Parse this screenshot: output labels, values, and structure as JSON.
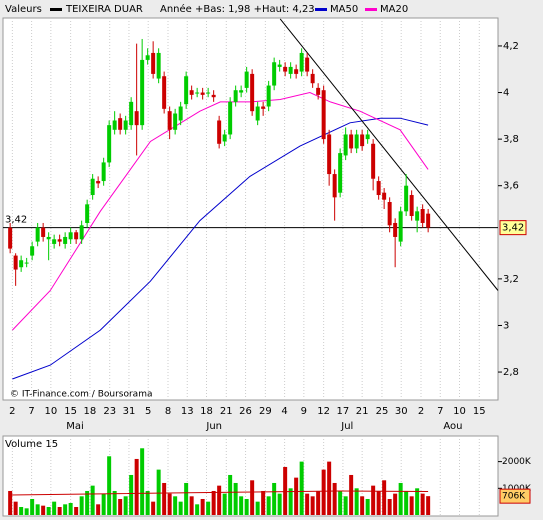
{
  "chart_data": {
    "type": "candlestick",
    "legend_label": "Valeurs",
    "title": "TEIXEIRA DUAR",
    "subtitle": "Année +Bas: 1,98 +Haut: 4,23",
    "credit": "© IT-Finance.com / Boursorama",
    "up_color": "#00cc00",
    "down_color": "#cc0000",
    "x": [
      0,
      1,
      2,
      3,
      4,
      5,
      6,
      7,
      8,
      9,
      10,
      11,
      12,
      13,
      14,
      15,
      16,
      17,
      18,
      19,
      20,
      21,
      22,
      23,
      24,
      25,
      26,
      27,
      28,
      29,
      30,
      31,
      32,
      33,
      34,
      35,
      36,
      37,
      38,
      39,
      40,
      41,
      42,
      43,
      44,
      45,
      46,
      47,
      48,
      49,
      50,
      51,
      52,
      53,
      54,
      55,
      56,
      57,
      58,
      59,
      60,
      61,
      62,
      63,
      64,
      65,
      66,
      67,
      68,
      69,
      70,
      71,
      72,
      73,
      74,
      75,
      76
    ],
    "open": [
      3.42,
      3.3,
      3.25,
      3.27,
      3.3,
      3.36,
      3.42,
      3.37,
      3.35,
      3.37,
      3.35,
      3.37,
      3.4,
      3.37,
      3.44,
      3.56,
      3.62,
      3.62,
      3.7,
      3.84,
      3.89,
      3.84,
      3.86,
      3.92,
      3.86,
      4.14,
      4.17,
      4.06,
      4.07,
      3.92,
      3.84,
      3.88,
      3.95,
      4.01,
      4.0,
      4.0,
      4.0,
      3.99,
      3.88,
      3.79,
      3.82,
      3.96,
      4.0,
      4.02,
      4.08,
      3.88,
      3.94,
      3.94,
      4.03,
      4.11,
      4.11,
      4.08,
      4.1,
      4.09,
      4.15,
      4.08,
      4.02,
      4.01,
      3.82,
      3.65,
      3.57,
      3.73,
      3.82,
      3.76,
      3.82,
      3.8,
      3.78,
      3.62,
      3.57,
      3.53,
      3.44,
      3.36,
      3.49,
      3.56,
      3.45,
      3.5,
      3.48
    ],
    "high": [
      3.44,
      3.31,
      3.3,
      3.29,
      3.36,
      3.44,
      3.44,
      3.4,
      3.39,
      3.39,
      3.4,
      3.42,
      3.41,
      3.45,
      3.54,
      3.65,
      3.64,
      3.72,
      3.88,
      3.92,
      3.91,
      3.9,
      3.98,
      4.21,
      4.23,
      4.19,
      4.22,
      4.19,
      4.09,
      3.94,
      3.93,
      3.96,
      4.09,
      4.03,
      4.02,
      4.02,
      4.02,
      4.01,
      3.9,
      3.84,
      3.98,
      4.03,
      4.03,
      4.11,
      4.1,
      3.96,
      3.96,
      4.05,
      4.15,
      4.14,
      4.13,
      4.13,
      4.12,
      4.19,
      4.17,
      4.1,
      4.04,
      4.03,
      3.84,
      3.67,
      3.76,
      3.85,
      3.84,
      3.84,
      3.84,
      3.84,
      3.8,
      3.64,
      3.59,
      3.55,
      3.46,
      3.51,
      3.65,
      3.58,
      3.51,
      3.52,
      3.5
    ],
    "low": [
      3.31,
      3.17,
      3.23,
      3.25,
      3.28,
      3.34,
      3.36,
      3.28,
      3.33,
      3.34,
      3.33,
      3.35,
      3.35,
      3.35,
      3.42,
      3.54,
      3.59,
      3.6,
      3.68,
      3.82,
      3.82,
      3.82,
      3.84,
      3.73,
      3.84,
      4.12,
      4.06,
      4.04,
      3.91,
      3.8,
      3.82,
      3.86,
      3.93,
      3.97,
      3.98,
      3.97,
      3.98,
      3.96,
      3.76,
      3.77,
      3.8,
      3.94,
      3.98,
      4.0,
      3.9,
      3.86,
      3.9,
      3.92,
      4.01,
      4.09,
      4.07,
      4.06,
      4.06,
      4.07,
      4.07,
      4.02,
      3.97,
      3.78,
      3.6,
      3.45,
      3.55,
      3.71,
      3.74,
      3.74,
      3.75,
      3.78,
      3.58,
      3.54,
      3.5,
      3.4,
      3.25,
      3.34,
      3.47,
      3.45,
      3.4,
      3.42,
      3.4
    ],
    "close": [
      3.33,
      3.24,
      3.28,
      3.27,
      3.34,
      3.42,
      3.38,
      3.38,
      3.37,
      3.36,
      3.38,
      3.4,
      3.37,
      3.43,
      3.52,
      3.63,
      3.61,
      3.7,
      3.86,
      3.88,
      3.84,
      3.88,
      3.96,
      3.86,
      4.14,
      4.16,
      4.08,
      4.17,
      3.93,
      3.84,
      3.91,
      3.94,
      4.07,
      3.99,
      4.0,
      3.99,
      4.0,
      3.98,
      3.78,
      3.82,
      3.96,
      4.01,
      4.01,
      4.09,
      3.92,
      3.94,
      3.93,
      4.03,
      4.13,
      4.12,
      4.09,
      4.11,
      4.08,
      4.17,
      4.09,
      4.04,
      3.99,
      3.8,
      3.65,
      3.55,
      3.74,
      3.82,
      3.76,
      3.82,
      3.77,
      3.82,
      3.63,
      3.56,
      3.54,
      3.43,
      3.38,
      3.49,
      3.6,
      3.47,
      3.49,
      3.44,
      3.42
    ],
    "xlim": [
      -1.3,
      88.7
    ],
    "ylim": [
      2.68,
      4.32
    ],
    "yticks": [
      {
        "value": 4.2,
        "label": "4,2"
      },
      4,
      {
        "value": 3.8,
        "label": "3,8"
      },
      {
        "value": 3.6,
        "label": "3,6"
      },
      {
        "value": 3.2,
        "label": "3,2"
      },
      3,
      {
        "value": 2.8,
        "label": "2,8"
      }
    ],
    "xticks": [
      {
        "value": 0.4,
        "label": "2"
      },
      {
        "value": 3.9,
        "label": "7"
      },
      {
        "value": 7.4,
        "label": "10"
      },
      {
        "value": 11.0,
        "label": "15"
      },
      {
        "value": 14.5,
        "label": "18"
      },
      {
        "value": 18.1,
        "label": "23"
      },
      {
        "value": 21.6,
        "label": "31"
      },
      {
        "value": 25.1,
        "label": "5"
      },
      {
        "value": 28.7,
        "label": "8"
      },
      {
        "value": 32.2,
        "label": "13"
      },
      {
        "value": 35.7,
        "label": "18"
      },
      {
        "value": 39.3,
        "label": "21"
      },
      {
        "value": 42.8,
        "label": "26"
      },
      {
        "value": 46.4,
        "label": "29"
      },
      {
        "value": 49.9,
        "label": "4"
      },
      {
        "value": 53.4,
        "label": "9"
      },
      {
        "value": 57.0,
        "label": "12"
      },
      {
        "value": 60.5,
        "label": "17"
      },
      {
        "value": 64.0,
        "label": "21"
      },
      {
        "value": 67.6,
        "label": "25"
      },
      {
        "value": 71.1,
        "label": "30"
      },
      {
        "value": 74.7,
        "label": "2"
      },
      {
        "value": 78.2,
        "label": "7"
      },
      {
        "value": 81.7,
        "label": "10"
      },
      {
        "value": 85.3,
        "label": "15"
      }
    ],
    "months": [
      {
        "value": 11.8,
        "label": "Mai"
      },
      {
        "value": 37.1,
        "label": "Jun"
      },
      {
        "value": 61.3,
        "label": "Jul"
      },
      {
        "value": 80.5,
        "label": "Aou"
      }
    ],
    "series": [
      {
        "name": "MA50",
        "color": "#0000cc",
        "x": [
          0.4,
          7.3,
          16.4,
          25.5,
          34.5,
          43.6,
          52.7,
          61.8,
          67.3,
          70.9,
          76
        ],
        "values": [
          2.77,
          2.83,
          2.98,
          3.19,
          3.45,
          3.64,
          3.77,
          3.87,
          3.89,
          3.89,
          3.86
        ]
      },
      {
        "name": "MA20",
        "color": "#ff00cc",
        "x": [
          0.4,
          7.3,
          16.4,
          25.5,
          34.5,
          38.2,
          43.6,
          49.1,
          54.5,
          58.2,
          63.6,
          70.9,
          76
        ],
        "values": [
          2.98,
          3.15,
          3.49,
          3.79,
          3.92,
          3.96,
          3.96,
          3.97,
          4.0,
          3.96,
          3.92,
          3.84,
          3.67
        ]
      }
    ],
    "trendline": {
      "color": "#000000",
      "x": [
        49.1,
        88.7
      ],
      "values": [
        4.316,
        3.15
      ]
    },
    "last_price": {
      "value": 3.42,
      "label": "3,42"
    },
    "volume": {
      "title": "Volume 15",
      "values": [
        900,
        500,
        300,
        250,
        600,
        400,
        350,
        300,
        500,
        300,
        400,
        450,
        300,
        700,
        900,
        1100,
        400,
        800,
        2200,
        900,
        600,
        700,
        1500,
        2100,
        2500,
        900,
        500,
        1700,
        1200,
        800,
        700,
        500,
        1200,
        700,
        400,
        600,
        500,
        900,
        1100,
        800,
        1500,
        1200,
        700,
        600,
        1300,
        500,
        900,
        700,
        1200,
        800,
        1800,
        1000,
        1400,
        2000,
        800,
        700,
        900,
        1700,
        2000,
        1200,
        900,
        700,
        1500,
        1000,
        700,
        600,
        1100,
        900,
        1300,
        600,
        800,
        1200,
        900,
        700,
        1000,
        800,
        706
      ],
      "ylim": [
        0,
        2960
      ],
      "yticks": [
        {
          "value": 1000,
          "label": "1000K"
        },
        {
          "value": 2000,
          "label": "2000K"
        }
      ],
      "ma": {
        "color": "#cc0000",
        "x": [
          0,
          20,
          40,
          60,
          76
        ],
        "values": [
          750,
          800,
          850,
          900,
          880
        ]
      },
      "last": {
        "value": 706,
        "label": "706K"
      }
    }
  }
}
